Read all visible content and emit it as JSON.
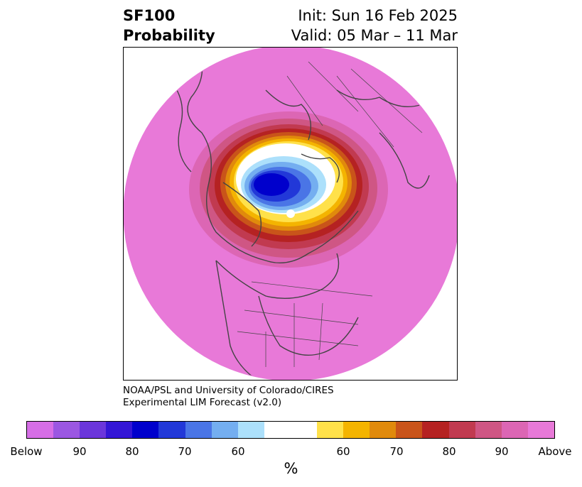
{
  "title": {
    "left_line1": "SF100",
    "left_line2": "Probability",
    "right_line1": "Init: Sun 16 Feb 2025",
    "right_line2": "Valid: 05 Mar – 11 Mar"
  },
  "credit": {
    "line1": "NOAA/PSL and University of Colorado/CIRES",
    "line2": "Experimental LIM Forecast (v2.0)"
  },
  "colorbar": {
    "colors": [
      "#d66ee6",
      "#9b57e2",
      "#6b36db",
      "#3416d6",
      "#0000cc",
      "#2238d8",
      "#4a75e6",
      "#74aef0",
      "#ace0fb",
      "#ffffff",
      "#ffe14a",
      "#f4b400",
      "#e08a0c",
      "#c9541a",
      "#b52222",
      "#c13a50",
      "#cf5684",
      "#dc66b4",
      "#e879d8"
    ],
    "tick_labels": [
      "Below",
      "90",
      "80",
      "70",
      "60",
      "60",
      "70",
      "80",
      "90",
      "Above"
    ],
    "unit": "%"
  },
  "map": {
    "background_color": "#e879d8",
    "low_center_color": "#0000cc"
  }
}
